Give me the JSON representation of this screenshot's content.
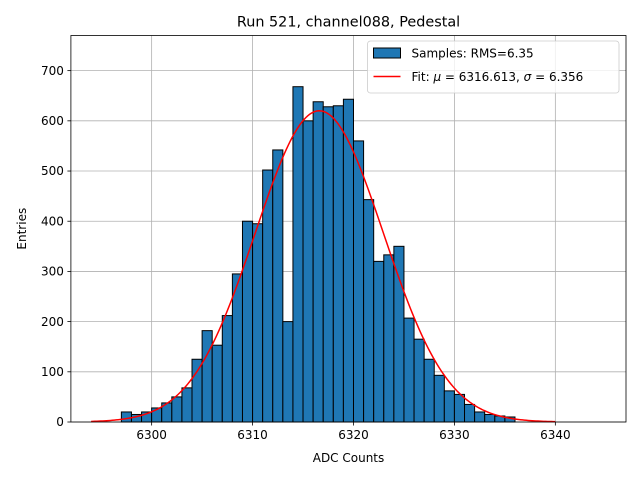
{
  "chart_data": {
    "type": "bar",
    "title": "Run 521, channel088, Pedestal",
    "xlabel": "ADC Counts",
    "ylabel": "Entries",
    "xlim": [
      6292,
      6347
    ],
    "ylim": [
      0,
      770
    ],
    "xticks": [
      6300,
      6310,
      6320,
      6330,
      6340
    ],
    "yticks": [
      0,
      100,
      200,
      300,
      400,
      500,
      600,
      700
    ],
    "grid": true,
    "legend_position": "top-right",
    "colors": {
      "bar": "#1f77b4",
      "bar_edge": "#000000",
      "fit": "#ff0000"
    },
    "histogram": {
      "name": "Samples: RMS=6.35",
      "bin_width": 1,
      "bin_starts": [
        6297,
        6298,
        6299,
        6300,
        6301,
        6302,
        6303,
        6304,
        6305,
        6306,
        6307,
        6308,
        6309,
        6310,
        6311,
        6312,
        6313,
        6314,
        6315,
        6316,
        6317,
        6318,
        6319,
        6320,
        6321,
        6322,
        6323,
        6324,
        6325,
        6326,
        6327,
        6328,
        6329,
        6330,
        6331,
        6332,
        6333,
        6334,
        6335
      ],
      "values": [
        20,
        15,
        20,
        28,
        38,
        50,
        68,
        125,
        182,
        153,
        212,
        295,
        400,
        395,
        502,
        542,
        200,
        668,
        600,
        638,
        628,
        630,
        643,
        560,
        443,
        320,
        333,
        350,
        207,
        165,
        125,
        93,
        62,
        55,
        35,
        20,
        15,
        12,
        10
      ]
    },
    "fit": {
      "name": "Fit: μ = 6316.613, σ = 6.356",
      "label_prefix": "Fit: ",
      "mu_symbol": "μ",
      "mu_text": " = 6316.613, ",
      "sigma_symbol": "σ",
      "sigma_text": " = 6.356",
      "mu": 6316.613,
      "sigma": 6.356,
      "amplitude": 620,
      "x_range": [
        6294,
        6340
      ]
    }
  }
}
